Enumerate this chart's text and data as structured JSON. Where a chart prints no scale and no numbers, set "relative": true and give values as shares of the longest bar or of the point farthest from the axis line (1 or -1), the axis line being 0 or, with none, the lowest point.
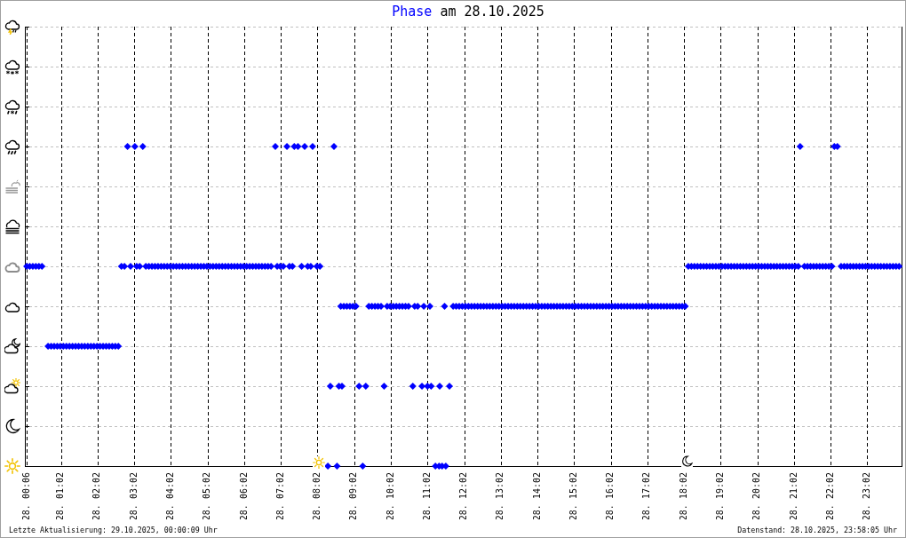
{
  "chart_data": {
    "type": "scatter",
    "title": "am 28.10.2025",
    "annotations": [
      "Letzte Aktualisierung: 29.10.2025, 00:00:09 Uhr",
      "Datenstand: 28.10.2025, 23:58:05 Uhr"
    ],
    "xlim": [
      "2025-10-28T00:03",
      "2025-10-28T23:58"
    ],
    "xticks": [
      {
        "value": "2025-10-28T00:06",
        "label": "28. 00:06"
      },
      {
        "value": "2025-10-28T01:02",
        "label": "28. 01:02"
      },
      {
        "value": "2025-10-28T02:02",
        "label": "28. 02:02"
      },
      {
        "value": "2025-10-28T03:02",
        "label": "28. 03:02"
      },
      {
        "value": "2025-10-28T04:02",
        "label": "28. 04:02"
      },
      {
        "value": "2025-10-28T05:02",
        "label": "28. 05:02"
      },
      {
        "value": "2025-10-28T06:02",
        "label": "28. 06:02"
      },
      {
        "value": "2025-10-28T07:02",
        "label": "28. 07:02"
      },
      {
        "value": "2025-10-28T08:02",
        "label": "28. 08:02"
      },
      {
        "value": "2025-10-28T09:02",
        "label": "28. 09:02"
      },
      {
        "value": "2025-10-28T10:02",
        "label": "28. 10:02"
      },
      {
        "value": "2025-10-28T11:02",
        "label": "28. 11:02"
      },
      {
        "value": "2025-10-28T12:02",
        "label": "28. 12:02"
      },
      {
        "value": "2025-10-28T13:02",
        "label": "28. 13:02"
      },
      {
        "value": "2025-10-28T14:02",
        "label": "28. 14:02"
      },
      {
        "value": "2025-10-28T15:02",
        "label": "28. 15:02"
      },
      {
        "value": "2025-10-28T16:02",
        "label": "28. 16:02"
      },
      {
        "value": "2025-10-28T17:02",
        "label": "28. 17:02"
      },
      {
        "value": "2025-10-28T18:02",
        "label": "28. 18:02"
      },
      {
        "value": "2025-10-28T19:02",
        "label": "28. 19:02"
      },
      {
        "value": "2025-10-28T20:02",
        "label": "28. 20:02"
      },
      {
        "value": "2025-10-28T21:02",
        "label": "28. 21:02"
      },
      {
        "value": "2025-10-28T22:02",
        "label": "28. 22:02"
      },
      {
        "value": "2025-10-28T23:02",
        "label": "28. 23:02"
      }
    ],
    "relative": true,
    "grid": true,
    "tick_labels": "x",
    "marker": "diamond",
    "series": [
      {
        "name": "Phase",
        "color": "#0000ff",
        "x": [
          "2025-10-28T00:06",
          "2025-10-28T00:11",
          "2025-10-28T00:16",
          "2025-10-28T00:21",
          "2025-10-28T00:26",
          "2025-10-28T00:31",
          "2025-10-28T00:41",
          "2025-10-28T00:46",
          "2025-10-28T00:51",
          "2025-10-28T00:56",
          "2025-10-28T01:01",
          "2025-10-28T01:06",
          "2025-10-28T01:11",
          "2025-10-28T01:16",
          "2025-10-28T01:21",
          "2025-10-28T01:26",
          "2025-10-28T01:31",
          "2025-10-28T01:36",
          "2025-10-28T01:41",
          "2025-10-28T01:46",
          "2025-10-28T01:51",
          "2025-10-28T01:56",
          "2025-10-28T02:01",
          "2025-10-28T02:06",
          "2025-10-28T02:11",
          "2025-10-28T02:16",
          "2025-10-28T02:21",
          "2025-10-28T02:26",
          "2025-10-28T02:31",
          "2025-10-28T02:36",
          "2025-10-28T02:41",
          "2025-10-28T02:46",
          "2025-10-28T02:56",
          "2025-10-28T03:06",
          "2025-10-28T03:11",
          "2025-10-28T03:21",
          "2025-10-28T03:26",
          "2025-10-28T03:31",
          "2025-10-28T03:36",
          "2025-10-28T03:41",
          "2025-10-28T03:46",
          "2025-10-28T03:51",
          "2025-10-28T03:56",
          "2025-10-28T04:01",
          "2025-10-28T04:06",
          "2025-10-28T04:11",
          "2025-10-28T04:16",
          "2025-10-28T04:21",
          "2025-10-28T04:26",
          "2025-10-28T04:31",
          "2025-10-28T04:36",
          "2025-10-28T04:41",
          "2025-10-28T04:46",
          "2025-10-28T04:51",
          "2025-10-28T04:56",
          "2025-10-28T05:01",
          "2025-10-28T05:06",
          "2025-10-28T05:11",
          "2025-10-28T05:16",
          "2025-10-28T05:21",
          "2025-10-28T05:26",
          "2025-10-28T05:31",
          "2025-10-28T05:36",
          "2025-10-28T05:41",
          "2025-10-28T05:46",
          "2025-10-28T05:51",
          "2025-10-28T05:56",
          "2025-10-28T06:01",
          "2025-10-28T06:06",
          "2025-10-28T06:11",
          "2025-10-28T06:16",
          "2025-10-28T06:21",
          "2025-10-28T06:26",
          "2025-10-28T06:31",
          "2025-10-28T06:36",
          "2025-10-28T06:41",
          "2025-10-28T06:46",
          "2025-10-28T06:56",
          "2025-10-28T07:01",
          "2025-10-28T07:06",
          "2025-10-28T07:16",
          "2025-10-28T07:21",
          "2025-10-28T07:36",
          "2025-10-28T07:46",
          "2025-10-28T07:51",
          "2025-10-28T08:01",
          "2025-10-28T08:06",
          "2025-10-28T02:51",
          "2025-10-28T03:03",
          "2025-10-28T03:16",
          "2025-10-28T06:53",
          "2025-10-28T07:12",
          "2025-10-28T07:24",
          "2025-10-28T07:30",
          "2025-10-28T07:41",
          "2025-10-28T07:54",
          "2025-10-28T08:29",
          "2025-10-28T08:19",
          "2025-10-28T08:34",
          "2025-10-28T09:16",
          "2025-10-28T11:15",
          "2025-10-28T11:21",
          "2025-10-28T11:26",
          "2025-10-28T11:32",
          "2025-10-28T08:23",
          "2025-10-28T08:37",
          "2025-10-28T08:42",
          "2025-10-28T09:10",
          "2025-10-28T09:21",
          "2025-10-28T09:51",
          "2025-10-28T10:38",
          "2025-10-28T10:53",
          "2025-10-28T11:02",
          "2025-10-28T11:08",
          "2025-10-28T11:22",
          "2025-10-28T11:38",
          "2025-10-28T08:40",
          "2025-10-28T08:45",
          "2025-10-28T08:50",
          "2025-10-28T08:55",
          "2025-10-28T09:00",
          "2025-10-28T09:05",
          "2025-10-28T09:26",
          "2025-10-28T09:31",
          "2025-10-28T09:36",
          "2025-10-28T09:41",
          "2025-10-28T09:46",
          "2025-10-28T09:56",
          "2025-10-28T10:01",
          "2025-10-28T10:06",
          "2025-10-28T10:11",
          "2025-10-28T10:16",
          "2025-10-28T10:21",
          "2025-10-28T10:26",
          "2025-10-28T10:31",
          "2025-10-28T10:41",
          "2025-10-28T10:46",
          "2025-10-28T10:56",
          "2025-10-28T11:06",
          "2025-10-28T11:30",
          "2025-10-28T11:44",
          "2025-10-28T11:49",
          "2025-10-28T11:54",
          "2025-10-28T11:59",
          "2025-10-28T12:04",
          "2025-10-28T12:09",
          "2025-10-28T12:14",
          "2025-10-28T12:19",
          "2025-10-28T12:24",
          "2025-10-28T12:29",
          "2025-10-28T12:34",
          "2025-10-28T12:39",
          "2025-10-28T12:44",
          "2025-10-28T12:49",
          "2025-10-28T12:54",
          "2025-10-28T12:59",
          "2025-10-28T13:04",
          "2025-10-28T13:09",
          "2025-10-28T13:14",
          "2025-10-28T13:19",
          "2025-10-28T13:24",
          "2025-10-28T13:29",
          "2025-10-28T13:34",
          "2025-10-28T13:39",
          "2025-10-28T13:44",
          "2025-10-28T13:49",
          "2025-10-28T13:54",
          "2025-10-28T13:59",
          "2025-10-28T14:04",
          "2025-10-28T14:09",
          "2025-10-28T14:14",
          "2025-10-28T14:19",
          "2025-10-28T14:24",
          "2025-10-28T14:29",
          "2025-10-28T14:34",
          "2025-10-28T14:39",
          "2025-10-28T14:44",
          "2025-10-28T14:49",
          "2025-10-28T14:54",
          "2025-10-28T14:59",
          "2025-10-28T15:04",
          "2025-10-28T15:09",
          "2025-10-28T15:14",
          "2025-10-28T15:19",
          "2025-10-28T15:24",
          "2025-10-28T15:29",
          "2025-10-28T15:34",
          "2025-10-28T15:39",
          "2025-10-28T15:44",
          "2025-10-28T15:49",
          "2025-10-28T15:54",
          "2025-10-28T15:59",
          "2025-10-28T16:04",
          "2025-10-28T16:09",
          "2025-10-28T16:14",
          "2025-10-28T16:19",
          "2025-10-28T16:24",
          "2025-10-28T16:29",
          "2025-10-28T16:34",
          "2025-10-28T16:39",
          "2025-10-28T16:44",
          "2025-10-28T16:49",
          "2025-10-28T16:54",
          "2025-10-28T16:59",
          "2025-10-28T17:04",
          "2025-10-28T17:09",
          "2025-10-28T17:14",
          "2025-10-28T17:19",
          "2025-10-28T17:24",
          "2025-10-28T17:29",
          "2025-10-28T17:34",
          "2025-10-28T17:39",
          "2025-10-28T17:44",
          "2025-10-28T17:49",
          "2025-10-28T17:54",
          "2025-10-28T17:59",
          "2025-10-28T18:04",
          "2025-10-28T18:09",
          "2025-10-28T18:14",
          "2025-10-28T18:19",
          "2025-10-28T18:24",
          "2025-10-28T18:29",
          "2025-10-28T18:34",
          "2025-10-28T18:39",
          "2025-10-28T18:44",
          "2025-10-28T18:49",
          "2025-10-28T18:54",
          "2025-10-28T18:59",
          "2025-10-28T19:04",
          "2025-10-28T19:09",
          "2025-10-28T19:14",
          "2025-10-28T19:19",
          "2025-10-28T19:24",
          "2025-10-28T19:29",
          "2025-10-28T19:34",
          "2025-10-28T19:39",
          "2025-10-28T19:44",
          "2025-10-28T19:49",
          "2025-10-28T19:54",
          "2025-10-28T19:59",
          "2025-10-28T20:04",
          "2025-10-28T20:09",
          "2025-10-28T20:14",
          "2025-10-28T20:19",
          "2025-10-28T20:24",
          "2025-10-28T20:29",
          "2025-10-28T20:34",
          "2025-10-28T20:39",
          "2025-10-28T20:44",
          "2025-10-28T20:49",
          "2025-10-28T20:54",
          "2025-10-28T20:59",
          "2025-10-28T21:04",
          "2025-10-28T21:09",
          "2025-10-28T21:19",
          "2025-10-28T21:24",
          "2025-10-28T21:29",
          "2025-10-28T21:34",
          "2025-10-28T21:39",
          "2025-10-28T21:44",
          "2025-10-28T21:49",
          "2025-10-28T21:54",
          "2025-10-28T21:59",
          "2025-10-28T22:04",
          "2025-10-28T22:19",
          "2025-10-28T22:24",
          "2025-10-28T22:29",
          "2025-10-28T22:34",
          "2025-10-28T22:39",
          "2025-10-28T22:44",
          "2025-10-28T22:49",
          "2025-10-28T22:54",
          "2025-10-28T22:59",
          "2025-10-28T23:04",
          "2025-10-28T23:09",
          "2025-10-28T23:14",
          "2025-10-28T23:19",
          "2025-10-28T23:24",
          "2025-10-28T23:29",
          "2025-10-28T23:34",
          "2025-10-28T23:39",
          "2025-10-28T23:44",
          "2025-10-28T23:49",
          "2025-10-28T23:54",
          "2025-10-28T21:12",
          "2025-10-28T22:08",
          "2025-10-28T22:13"
        ],
        "values": [
          0.625,
          0.625,
          0.625,
          0.625,
          0.625,
          0.625,
          0.375,
          0.375,
          0.375,
          0.375,
          0.375,
          0.375,
          0.375,
          0.375,
          0.375,
          0.375,
          0.375,
          0.375,
          0.375,
          0.375,
          0.375,
          0.375,
          0.375,
          0.375,
          0.375,
          0.375,
          0.375,
          0.375,
          0.375,
          0.375,
          0.625,
          0.625,
          0.625,
          0.625,
          0.625,
          0.625,
          0.625,
          0.625,
          0.625,
          0.625,
          0.625,
          0.625,
          0.625,
          0.625,
          0.625,
          0.625,
          0.625,
          0.625,
          0.625,
          0.625,
          0.625,
          0.625,
          0.625,
          0.625,
          0.625,
          0.625,
          0.625,
          0.625,
          0.625,
          0.625,
          0.625,
          0.625,
          0.625,
          0.625,
          0.625,
          0.625,
          0.625,
          0.625,
          0.625,
          0.625,
          0.625,
          0.625,
          0.625,
          0.625,
          0.625,
          0.625,
          0.625,
          0.625,
          0.625,
          0.625,
          0.625,
          0.625,
          0.625,
          0.625,
          0.625,
          0.625,
          0.625,
          1,
          1,
          1,
          1,
          1,
          1,
          1,
          1,
          1,
          1,
          0,
          0,
          0,
          0,
          0,
          0,
          0,
          0.25,
          0.25,
          0.25,
          0.25,
          0.25,
          0.25,
          0.25,
          0.25,
          0.25,
          0.25,
          0.25,
          0.25,
          0.5,
          0.5,
          0.5,
          0.5,
          0.5,
          0.5,
          0.5,
          0.5,
          0.5,
          0.5,
          0.5,
          0.5,
          0.5,
          0.5,
          0.5,
          0.5,
          0.5,
          0.5,
          0.5,
          0.5,
          0.5,
          0.5,
          0.5,
          0.5,
          0.5,
          0.5,
          0.5,
          0.5,
          0.5,
          0.5,
          0.5,
          0.5,
          0.5,
          0.5,
          0.5,
          0.5,
          0.5,
          0.5,
          0.5,
          0.5,
          0.5,
          0.5,
          0.5,
          0.5,
          0.5,
          0.5,
          0.5,
          0.5,
          0.5,
          0.5,
          0.5,
          0.5,
          0.5,
          0.5,
          0.5,
          0.5,
          0.5,
          0.5,
          0.5,
          0.5,
          0.5,
          0.5,
          0.5,
          0.5,
          0.5,
          0.5,
          0.5,
          0.5,
          0.5,
          0.5,
          0.5,
          0.5,
          0.5,
          0.5,
          0.5,
          0.5,
          0.5,
          0.5,
          0.5,
          0.5,
          0.5,
          0.5,
          0.5,
          0.5,
          0.5,
          0.5,
          0.5,
          0.5,
          0.5,
          0.5,
          0.5,
          0.5,
          0.5,
          0.5,
          0.5,
          0.5,
          0.5,
          0.5,
          0.5,
          0.5,
          0.5,
          0.625,
          0.625,
          0.625,
          0.625,
          0.625,
          0.625,
          0.625,
          0.625,
          0.625,
          0.625,
          0.625,
          0.625,
          0.625,
          0.625,
          0.625,
          0.625,
          0.625,
          0.625,
          0.625,
          0.625,
          0.625,
          0.625,
          0.625,
          0.625,
          0.625,
          0.625,
          0.625,
          0.625,
          0.625,
          0.625,
          0.625,
          0.625,
          0.625,
          0.625,
          0.625,
          0.625,
          0.625,
          0.625,
          0.625,
          0.625,
          0.625,
          0.625,
          0.625,
          0.625,
          0.625,
          0.625,
          0.625,
          0.625,
          0.625,
          0.625,
          0.625,
          0.625,
          0.625,
          0.625,
          0.625,
          0.625,
          0.625,
          0.625,
          0.625,
          0.625,
          0.625,
          0.625,
          0.625,
          0.625,
          0.625,
          0.625,
          0.625,
          1,
          1,
          1
        ]
      }
    ]
  }
}
